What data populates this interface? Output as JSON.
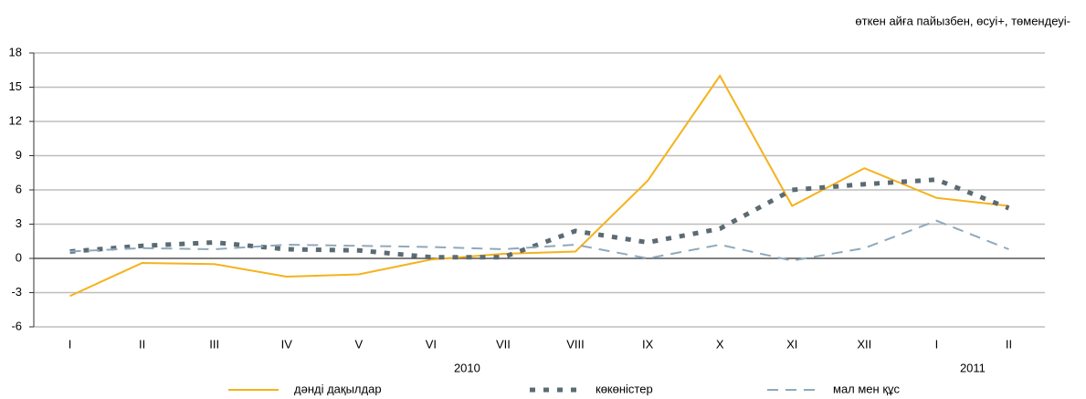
{
  "chart_data": {
    "type": "line",
    "subtitle": "өткен айға пайызбен, өсуі+, төмендеуі-",
    "categories": [
      "I",
      "II",
      "III",
      "IV",
      "V",
      "VI",
      "VII",
      "VIII",
      "IX",
      "X",
      "XI",
      "XII",
      "I",
      "II"
    ],
    "category_groups": [
      {
        "label": "2010",
        "span": 12
      },
      {
        "label": "2011",
        "span": 2
      }
    ],
    "series": [
      {
        "name": "дәнді дақылдар",
        "color": "#f5b21c",
        "style": "solid",
        "values": [
          -3.3,
          -0.4,
          -0.5,
          -1.6,
          -1.4,
          -0.1,
          0.4,
          0.6,
          6.8,
          16,
          4.6,
          7.9,
          5.3,
          4.6
        ]
      },
      {
        "name": "көкөністер",
        "color": "#5b6b73",
        "style": "dotted",
        "values": [
          0.6,
          1.1,
          1.4,
          0.8,
          0.7,
          0.1,
          0.1,
          2.4,
          1.4,
          2.6,
          6.0,
          6.5,
          6.9,
          4.4
        ]
      },
      {
        "name": "мал мен құс",
        "color": "#8fa9bb",
        "style": "dashed",
        "values": [
          0.6,
          0.9,
          0.8,
          1.2,
          1.1,
          1.0,
          0.8,
          1.2,
          0.0,
          1.2,
          -0.2,
          0.9,
          3.3,
          0.8
        ]
      }
    ],
    "ylim": [
      -6,
      18
    ],
    "yticks": [
      -6,
      -3,
      0,
      3,
      6,
      9,
      12,
      15,
      18
    ],
    "grid": true
  }
}
